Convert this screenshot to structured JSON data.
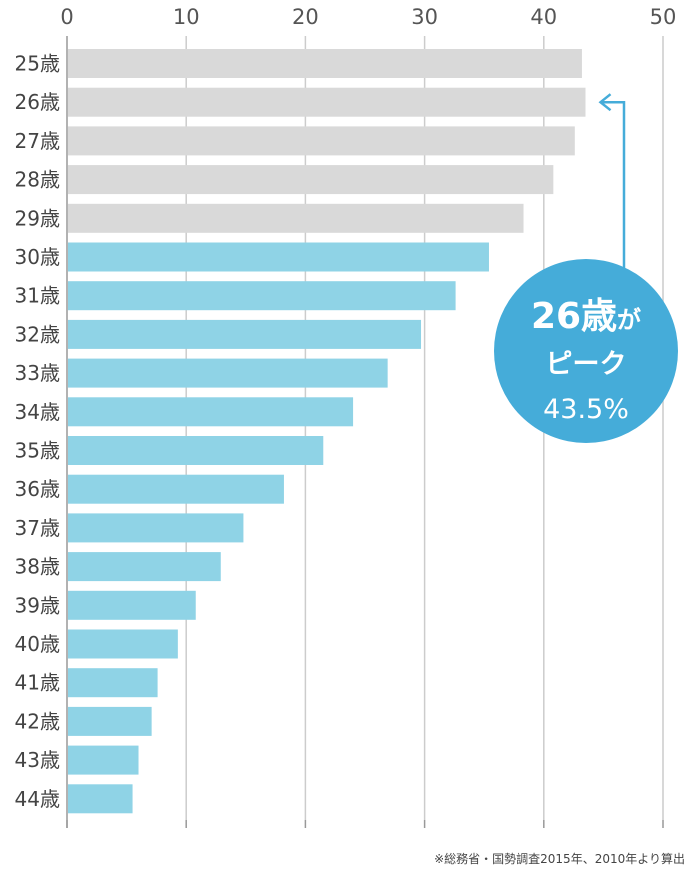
{
  "chart_data": {
    "type": "bar",
    "orientation": "horizontal",
    "categories": [
      "25歳",
      "26歳",
      "27歳",
      "28歳",
      "29歳",
      "30歳",
      "31歳",
      "32歳",
      "33歳",
      "34歳",
      "35歳",
      "36歳",
      "37歳",
      "38歳",
      "39歳",
      "40歳",
      "41歳",
      "42歳",
      "43歳",
      "44歳"
    ],
    "values": [
      43.2,
      43.5,
      42.6,
      40.8,
      38.3,
      35.4,
      32.6,
      29.7,
      26.9,
      24.0,
      21.5,
      18.2,
      14.8,
      12.9,
      10.8,
      9.3,
      7.6,
      7.1,
      6.0,
      5.5
    ],
    "xlim": [
      0,
      50
    ],
    "xticks": [
      "0",
      "10",
      "20",
      "30",
      "40",
      "50"
    ],
    "xtick_values": [
      0,
      10,
      20,
      30,
      40,
      50
    ],
    "grid": true,
    "highlight_from_index": 5,
    "colors": {
      "base_bar": "#d9d9d9",
      "highlight_bar": "#8fd3e6",
      "grid": "#cccccc",
      "axis": "#999999",
      "callout": "#45acd9",
      "arrow": "#45acd9"
    },
    "annotation": {
      "title_main": "26歳",
      "title_suffix": "が",
      "line2": "ピーク",
      "value": "43.5%",
      "target_category_index": 1
    }
  },
  "source_note": "※総務省・国勢調査2015年、2010年より算出"
}
